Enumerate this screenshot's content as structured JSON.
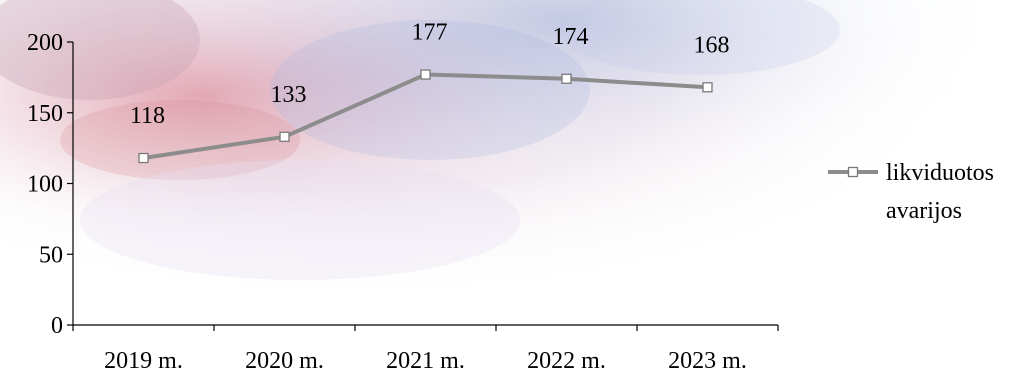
{
  "chart_data": {
    "type": "line",
    "title": "",
    "xlabel": "",
    "ylabel": "",
    "categories": [
      "2019 m.",
      "2020 m.",
      "2021 m.",
      "2022 m.",
      "2023 m."
    ],
    "series": [
      {
        "name_lines": [
          "likviduotos",
          "avarijos"
        ],
        "values": [
          118,
          133,
          177,
          174,
          168
        ],
        "data_labels": [
          "118",
          "133",
          "177",
          "174",
          "168"
        ],
        "color": "#8c8c8c",
        "marker": "hollow-square"
      }
    ],
    "ylim": [
      0,
      200
    ],
    "yticks": [
      0,
      50,
      100,
      150,
      200
    ],
    "ytick_labels": [
      "0",
      "50",
      "100",
      "150",
      "200"
    ],
    "grid": false,
    "legend_position": "right",
    "background": "decorative faded red-blue watercolor image behind plot"
  }
}
